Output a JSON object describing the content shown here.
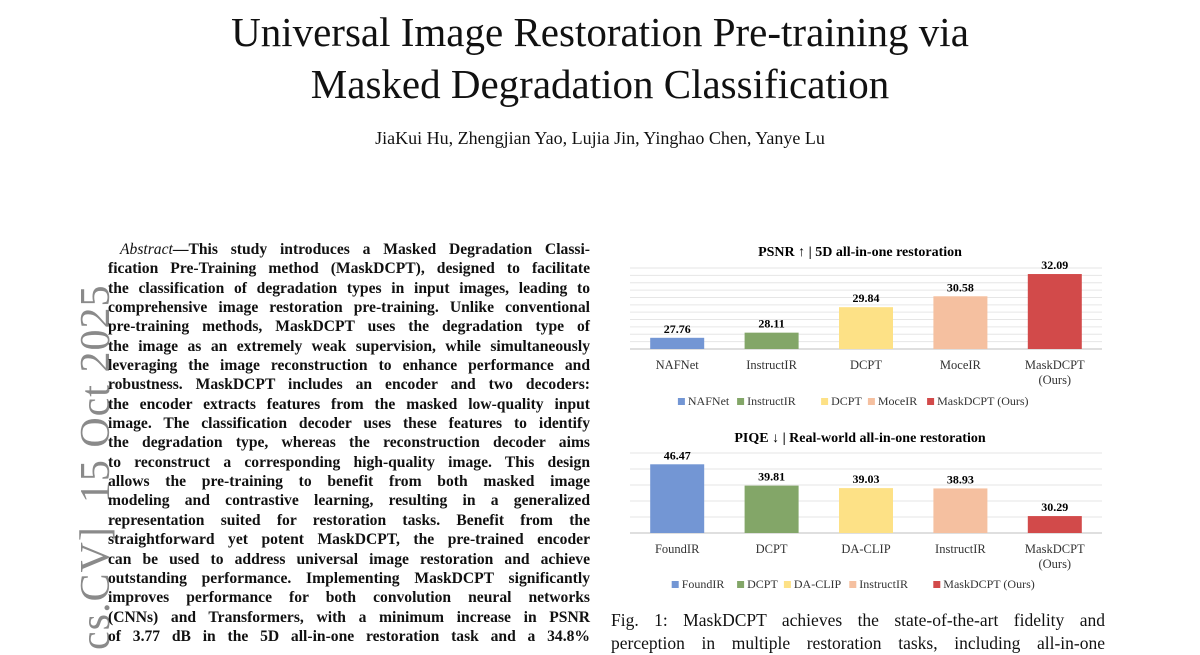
{
  "paper": {
    "title_lines": [
      "Universal Image Restoration Pre-training via",
      "Masked Degradation Classification"
    ],
    "authors": "JiaKui Hu, Zhengjian Yao, Lujia Jin, Yinghao Chen, Yanye Lu",
    "arxiv_stamp": "cs.CV]  15 Oct 2025",
    "abstract_label": "Abstract",
    "abstract_lines": [
      "—This study introduces a Masked Degradation Classi-",
      "fication Pre-Training method (MaskDCPT), designed to facilitate",
      "the classification of degradation types in input images, leading to",
      "comprehensive image restoration pre-training. Unlike conventional",
      "pre-training methods, MaskDCPT uses the degradation type of",
      "the image as an extremely weak supervision, while simultaneously",
      "leveraging the image reconstruction to enhance performance and",
      "robustness. MaskDCPT includes an encoder and two decoders:",
      "the encoder extracts features from the masked low-quality input",
      "image. The classification decoder uses these features to identify",
      "the degradation type, whereas the reconstruction decoder aims",
      "to reconstruct a corresponding high-quality image. This design",
      "allows the pre-training to benefit from both masked image",
      "modeling and contrastive learning, resulting in a generalized",
      "representation suited for restoration tasks. Benefit from the",
      "straightforward yet potent MaskDCPT, the pre-trained encoder",
      "can be used to address universal image restoration and achieve",
      "outstanding performance. Implementing MaskDCPT significantly",
      "improves performance for both convolution neural networks",
      "(CNNs) and Transformers, with a minimum increase in PSNR",
      "of 3.77 dB in the 5D all-in-one restoration task and a 34.8%"
    ],
    "caption_lines": [
      "Fig. 1: MaskDCPT achieves the state-of-the-art fidelity and",
      "perception in multiple restoration tasks, including all-in-one"
    ]
  },
  "chart_data": [
    {
      "type": "bar",
      "title": "PSNR ↑ | 5D all-in-one restoration",
      "categories": [
        "NAFNet",
        "InstructIR",
        "DCPT",
        "MoceIR",
        "MaskDCPT (Ours)"
      ],
      "values": [
        27.76,
        28.11,
        29.84,
        30.58,
        32.09
      ],
      "data_labels": [
        "27.76",
        "28.11",
        "29.84",
        "30.58",
        "32.09"
      ],
      "colors": [
        "#7396d4",
        "#83a668",
        "#fde186",
        "#f5c0a0",
        "#d24a4a"
      ],
      "ylim": [
        27,
        32.5
      ],
      "grid": true,
      "legend": "bottom",
      "xlabel": "",
      "ylabel": ""
    },
    {
      "type": "bar",
      "title": "PIQE ↓ | Real-world all-in-one restoration",
      "categories": [
        "FoundIR",
        "DCPT",
        "DA-CLIP",
        "InstructIR",
        "MaskDCPT (Ours)"
      ],
      "values": [
        46.47,
        39.81,
        39.03,
        38.93,
        30.29
      ],
      "data_labels": [
        "46.47",
        "39.81",
        "39.03",
        "38.93",
        "30.29"
      ],
      "colors": [
        "#7396d4",
        "#83a668",
        "#fde186",
        "#f5c0a0",
        "#d24a4a"
      ],
      "ylim": [
        25,
        50
      ],
      "grid": true,
      "legend": "bottom",
      "xlabel": "",
      "ylabel": ""
    }
  ]
}
